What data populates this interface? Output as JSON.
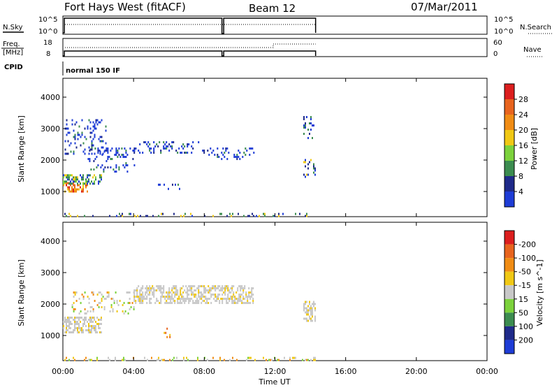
{
  "header": {
    "station": "Fort Hays West (fitACF)",
    "beam": "Beam 12",
    "date": "07/Mar/2011"
  },
  "nsky_panel": {
    "left_label": "N.Sky",
    "right_label": "N.Search",
    "left_ticks": [
      "10^5",
      "10^0"
    ],
    "right_ticks": [
      "10^5",
      "10^0"
    ]
  },
  "freq_panel": {
    "left_label_1": "Freq.",
    "left_label_2": "[MHz]",
    "right_label": "Nave",
    "left_ticks": [
      "18",
      "8"
    ],
    "right_ticks": [
      "60",
      "0"
    ]
  },
  "cpid_panel": {
    "label": "CPID",
    "value": "normal 150 IF"
  },
  "colors": {
    "blue": "#1e3cd6",
    "navy": "#1f2a8a",
    "green": "#3c8c50",
    "lime": "#7cd23c",
    "yellow": "#f0c814",
    "orange": "#f08c14",
    "dark_orange": "#e8641e",
    "red": "#dc1e1e",
    "gray": "#c8c8c8"
  },
  "chart_data": [
    {
      "type": "heatmap",
      "name": "power",
      "xlabel": "",
      "ylabel": "Slant Range [km]",
      "x_ticks": [
        "00:00",
        "04:00",
        "08:00",
        "12:00",
        "16:00",
        "20:00",
        "00:00"
      ],
      "x_range_hours": [
        0,
        24
      ],
      "y_ticks": [
        1000,
        2000,
        3000,
        4000
      ],
      "y_range_km": [
        200,
        4600
      ],
      "colorbar": {
        "label": "Power [dB]",
        "ticks": [
          "4",
          "8",
          "12",
          "16",
          "20",
          "24",
          "28"
        ],
        "colors": [
          "#1e3cd6",
          "#1f2a8a",
          "#3c8c50",
          "#7cd23c",
          "#f0c814",
          "#f08c14",
          "#e8641e",
          "#dc1e1e"
        ]
      },
      "echo_regions": [
        {
          "h0": 0.0,
          "h1": 1.4,
          "r0": 1000,
          "r1": 1300,
          "level": "high"
        },
        {
          "h0": 0.0,
          "h1": 2.2,
          "r0": 1250,
          "r1": 1550,
          "level": "mid"
        },
        {
          "h0": 0.1,
          "h1": 2.4,
          "r0": 2200,
          "r1": 3300,
          "level": "low"
        },
        {
          "h0": 1.4,
          "h1": 4.2,
          "r0": 1600,
          "r1": 2400,
          "level": "low"
        },
        {
          "h0": 4.0,
          "h1": 8.0,
          "r0": 2200,
          "r1": 2600,
          "level": "low"
        },
        {
          "h0": 8.0,
          "h1": 10.8,
          "r0": 2050,
          "r1": 2400,
          "level": "low"
        },
        {
          "h0": 5.3,
          "h1": 6.6,
          "r0": 1050,
          "r1": 1250,
          "level": "low"
        },
        {
          "h0": 13.6,
          "h1": 14.3,
          "r0": 1450,
          "r1": 2100,
          "level": "lowmid"
        },
        {
          "h0": 13.6,
          "h1": 14.3,
          "r0": 2700,
          "r1": 3400,
          "level": "low"
        },
        {
          "h0": 0.0,
          "h1": 14.3,
          "r0": 200,
          "r1": 320,
          "level": "ground"
        }
      ]
    },
    {
      "type": "heatmap",
      "name": "velocity",
      "xlabel": "Time UT",
      "ylabel": "Slant Range [km]",
      "x_ticks": [
        "00:00",
        "04:00",
        "08:00",
        "12:00",
        "16:00",
        "20:00",
        "00:00"
      ],
      "x_range_hours": [
        0,
        24
      ],
      "y_ticks": [
        1000,
        2000,
        3000,
        4000
      ],
      "y_range_km": [
        200,
        4600
      ],
      "colorbar": {
        "label": "Velocity [m s^-1]",
        "ticks": [
          "200",
          "100",
          "50",
          "15",
          "-15",
          "-50",
          "-100",
          "-200"
        ],
        "colors": [
          "#1e3cd6",
          "#1f2a8a",
          "#3c8c50",
          "#7cd23c",
          "#c8c8c8",
          "#f0c814",
          "#f08c14",
          "#e8641e",
          "#dc1e1e"
        ]
      },
      "echo_regions": [
        {
          "h0": 0.0,
          "h1": 2.2,
          "r0": 1100,
          "r1": 1600,
          "level": "gray"
        },
        {
          "h0": 0.5,
          "h1": 4.0,
          "r0": 1700,
          "r1": 2400,
          "level": "mixed"
        },
        {
          "h0": 4.0,
          "h1": 10.8,
          "r0": 2050,
          "r1": 2600,
          "level": "gray"
        },
        {
          "h0": 5.7,
          "h1": 6.2,
          "r0": 950,
          "r1": 1250,
          "level": "orange"
        },
        {
          "h0": 13.6,
          "h1": 14.3,
          "r0": 1450,
          "r1": 2100,
          "level": "gray"
        },
        {
          "h0": 0.0,
          "h1": 14.3,
          "r0": 200,
          "r1": 320,
          "level": "yellow"
        }
      ]
    }
  ]
}
